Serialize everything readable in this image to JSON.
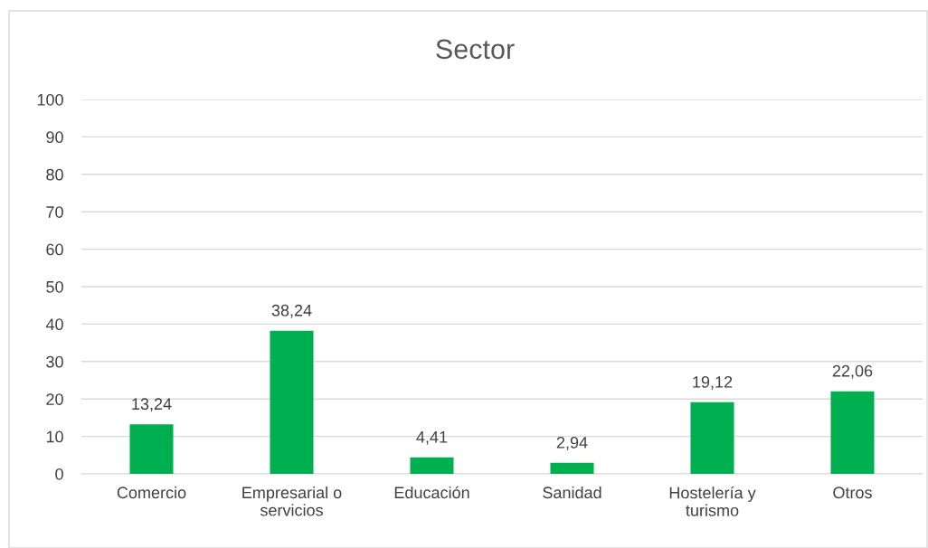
{
  "chart_data": {
    "type": "bar",
    "title": "Sector",
    "categories": [
      "Comercio",
      "Empresarial o servicios",
      "Educación",
      "Sanidad",
      "Hostelería y turismo",
      "Otros"
    ],
    "values": [
      13.24,
      38.24,
      4.41,
      2.94,
      19.12,
      22.06
    ],
    "value_labels": [
      "13,24",
      "38,24",
      "4,41",
      "2,94",
      "19,12",
      "22,06"
    ],
    "color": "#00b050",
    "ylim": [
      0,
      100
    ],
    "yticks": [
      0,
      10,
      20,
      30,
      40,
      50,
      60,
      70,
      80,
      90,
      100
    ],
    "grid": "y",
    "legend": false
  }
}
